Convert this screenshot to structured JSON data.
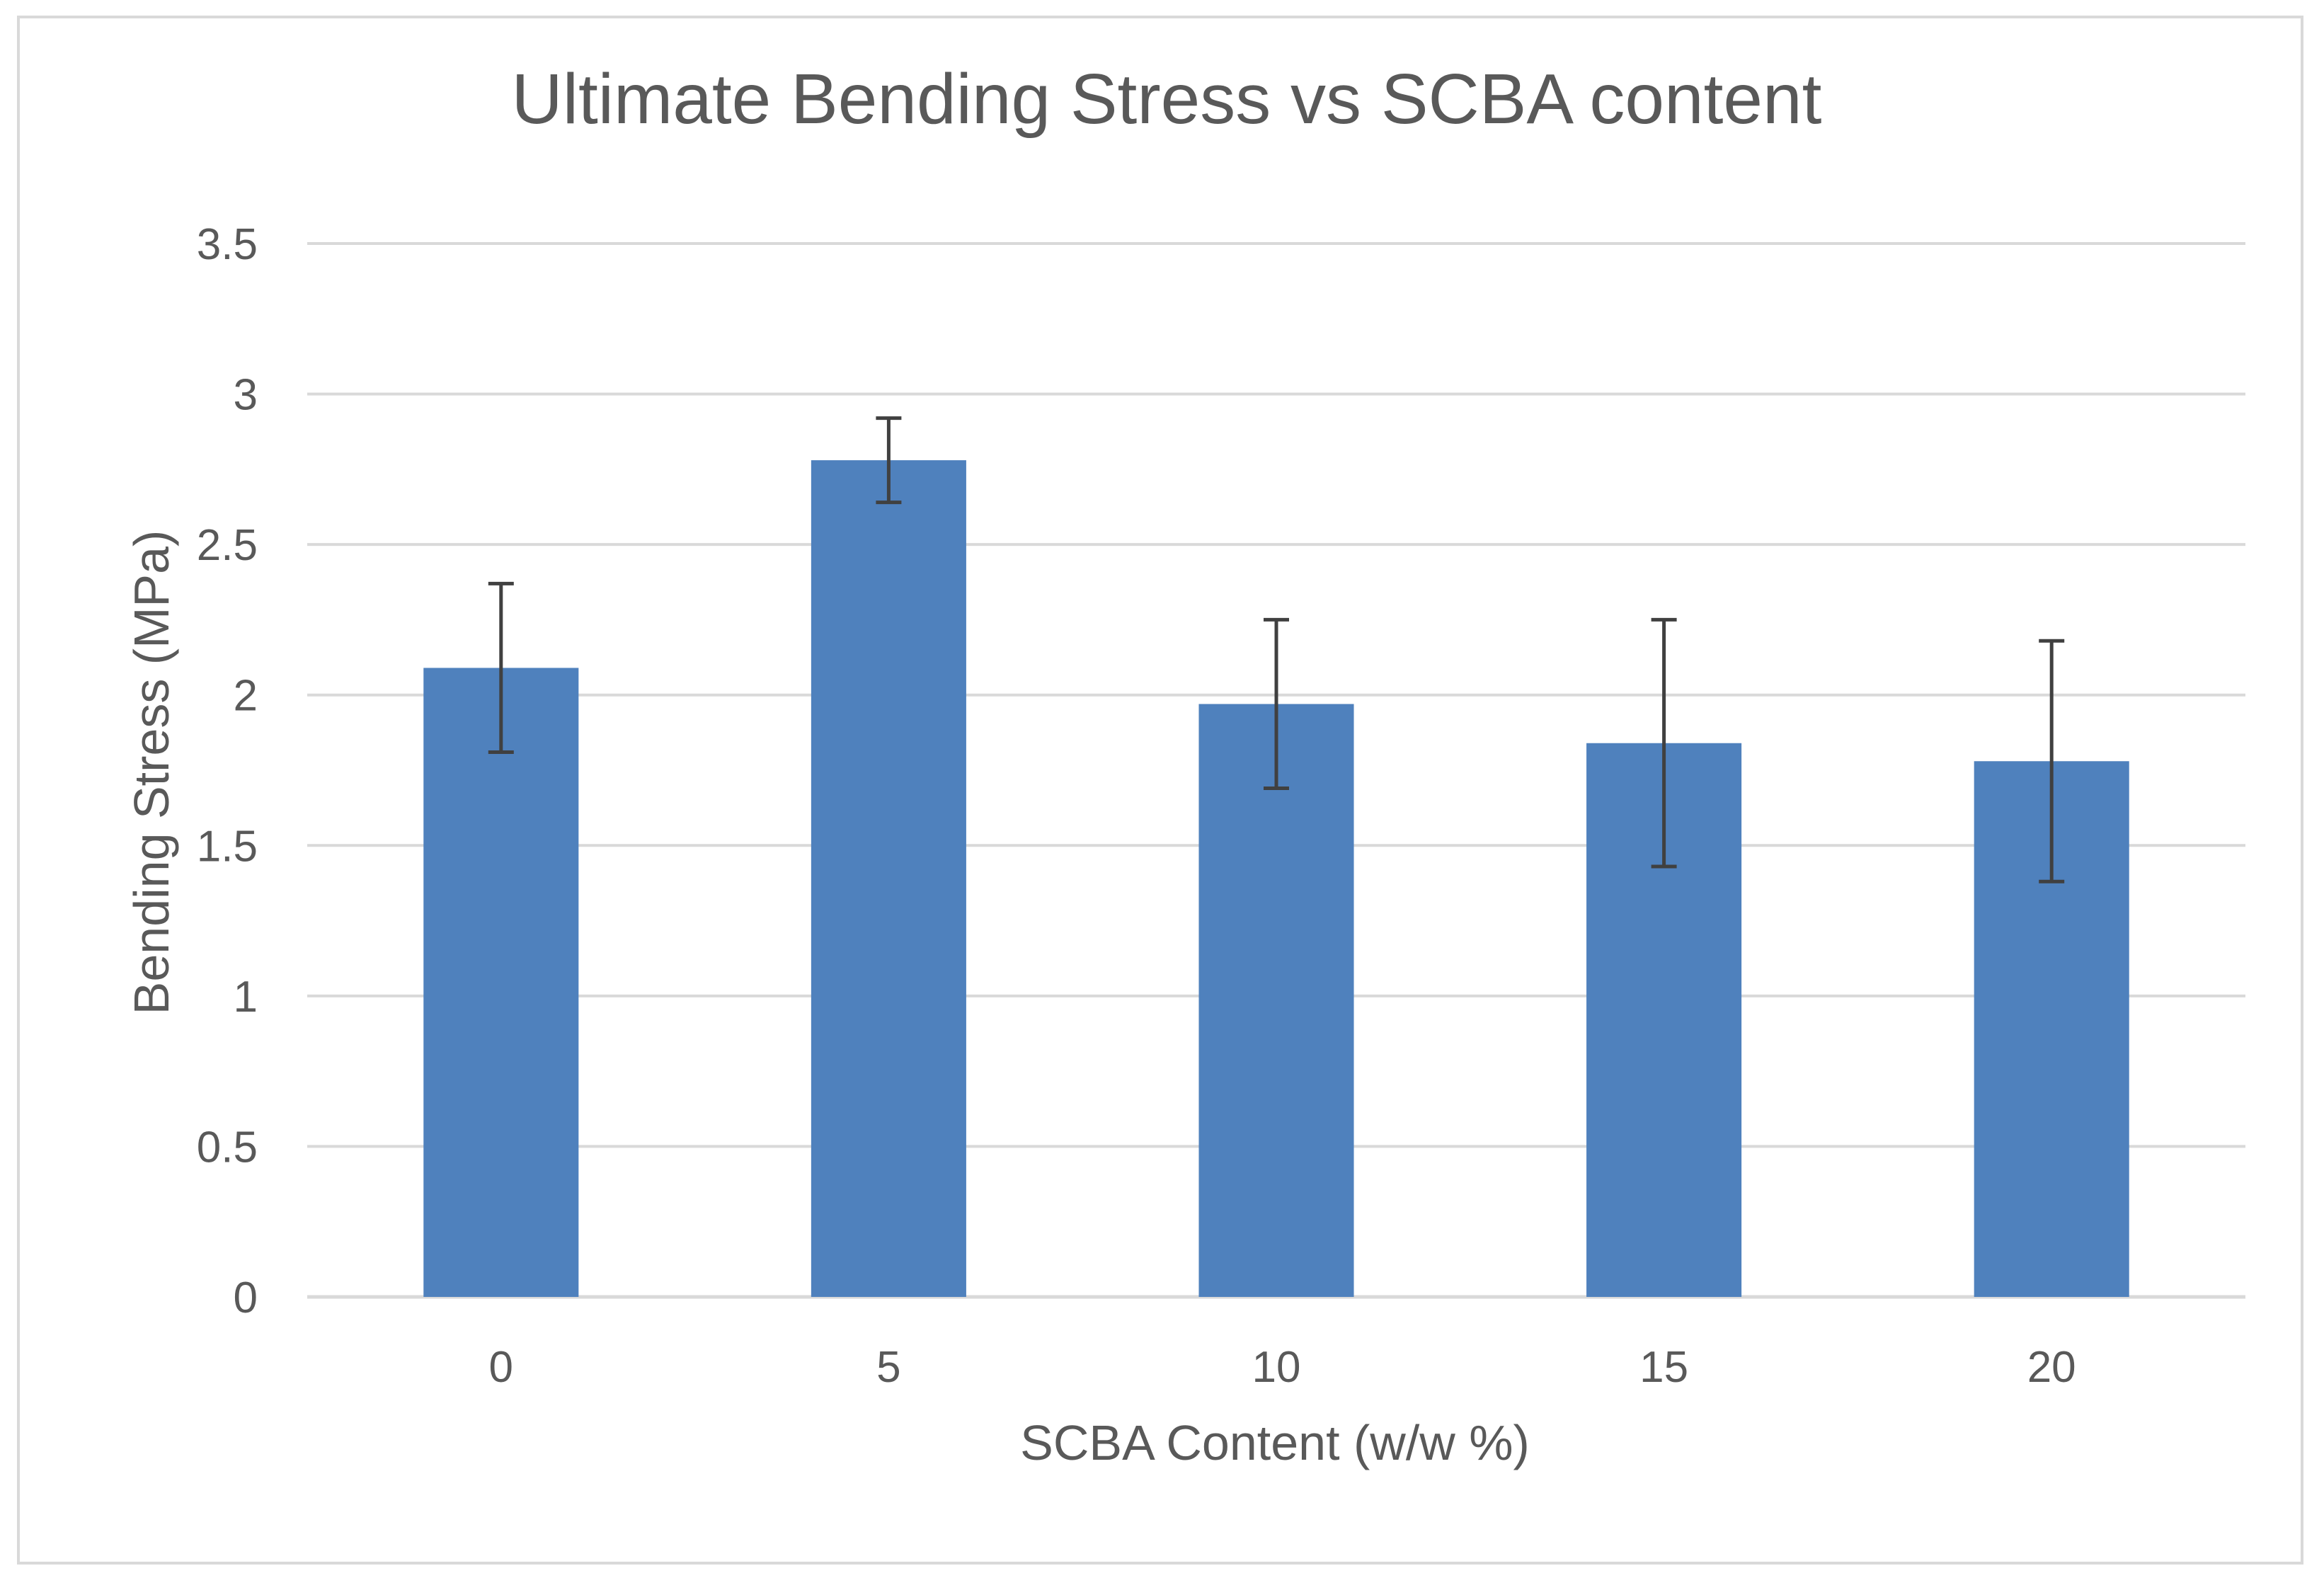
{
  "chart_data": {
    "type": "bar",
    "title": "Ultimate Bending Stress vs SCBA content",
    "xlabel": "SCBA Content (w/w %)",
    "ylabel": "Bending Stress (MPa)",
    "categories": [
      "0",
      "5",
      "10",
      "15",
      "20"
    ],
    "values": [
      2.09,
      2.78,
      1.97,
      1.84,
      1.78
    ],
    "error_plus": [
      0.28,
      0.14,
      0.28,
      0.41,
      0.4
    ],
    "error_minus": [
      0.28,
      0.14,
      0.28,
      0.41,
      0.4
    ],
    "ylim": [
      0,
      3.5
    ],
    "yticks": [
      "0",
      "0.5",
      "1",
      "1.5",
      "2",
      "2.5",
      "3",
      "3.5"
    ],
    "grid": true,
    "legend": "none",
    "bar_color": "#4f81bd",
    "error_bar_color": "#404040",
    "grid_color": "#d9d9d9",
    "text_color": "#595959"
  }
}
